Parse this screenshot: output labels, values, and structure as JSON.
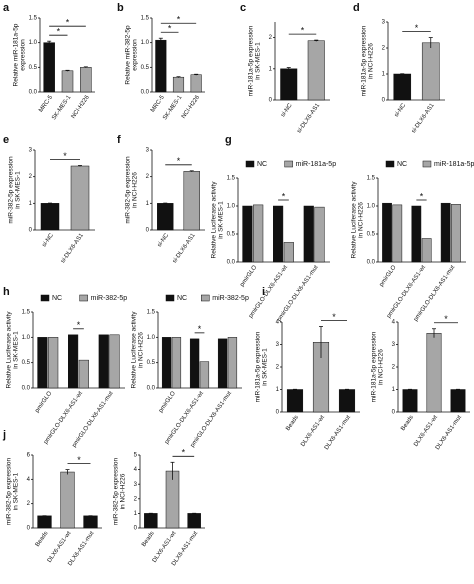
{
  "chart_data": [
    {
      "type": "bar",
      "panel": "a",
      "ylabel": [
        "Relative miR-181a-5p",
        "expression"
      ],
      "categories": [
        "MRC-5",
        "SK-MES-1",
        "NCI-H226"
      ],
      "values": [
        1.0,
        0.43,
        0.5
      ],
      "errors": [
        0.03,
        0.01,
        0.01
      ],
      "colors": [
        "#111111",
        "#a6a6a6",
        "#a6a6a6"
      ],
      "ylim": [
        0,
        1.5
      ],
      "yticks": [
        {
          "value": 0,
          "label": "0.0"
        },
        0.5,
        {
          "value": 1,
          "label": "1.0"
        },
        1.5
      ],
      "significance": [
        {
          "label": "*",
          "between": [
            "MRC-5",
            "SK-MES-1"
          ]
        },
        {
          "label": "*",
          "between": [
            "MRC-5",
            "NCI-H226"
          ]
        }
      ]
    },
    {
      "type": "bar",
      "panel": "b",
      "ylabel": [
        "Relative miR-382-5p",
        "expression"
      ],
      "categories": [
        "MRC-5",
        "SK-MES-1",
        "NCI-H226"
      ],
      "values": [
        1.05,
        0.3,
        0.35
      ],
      "errors": [
        0.04,
        0.01,
        0.01
      ],
      "colors": [
        "#111111",
        "#a6a6a6",
        "#a6a6a6"
      ],
      "ylim": [
        0,
        1.5
      ],
      "yticks": [
        {
          "value": 0,
          "label": "0.0"
        },
        0.5,
        {
          "value": 1,
          "label": "1.0"
        },
        1.5
      ],
      "significance": [
        {
          "label": "*",
          "between": [
            "MRC-5",
            "SK-MES-1"
          ]
        },
        {
          "label": "*",
          "between": [
            "MRC-5",
            "NCI-H226"
          ]
        }
      ]
    },
    {
      "type": "bar",
      "panel": "c",
      "ylabel": [
        "miR-181a-5p expression",
        "in SK-MES-1"
      ],
      "categories": [
        "si-NC",
        "si-DLX6-AS1"
      ],
      "values": [
        1.0,
        1.9
      ],
      "errors": [
        0.04,
        0.02
      ],
      "colors": [
        "#111111",
        "#a6a6a6"
      ],
      "ylim": [
        0,
        2.5
      ],
      "yticks": [
        0,
        1,
        2
      ],
      "significance": [
        {
          "label": "*",
          "between": [
            "si-NC",
            "si-DLX6-AS1"
          ]
        }
      ]
    },
    {
      "type": "bar",
      "panel": "d",
      "ylabel": [
        "miR-181a-5p expression",
        "in NCI-H226"
      ],
      "categories": [
        "si-NC",
        "si-DLX6-AS1"
      ],
      "values": [
        1.0,
        2.2
      ],
      "errors": [
        0.01,
        0.2
      ],
      "colors": [
        "#111111",
        "#a6a6a6"
      ],
      "ylim": [
        0,
        3
      ],
      "yticks": [
        0,
        1,
        2,
        3
      ],
      "significance": [
        {
          "label": "*",
          "between": [
            "si-NC",
            "si-DLX6-AS1"
          ]
        }
      ]
    },
    {
      "type": "bar",
      "panel": "e",
      "ylabel": [
        "miR-382-5p expression",
        "in SK-MES-1"
      ],
      "categories": [
        "si-NC",
        "si-DLX6-AS1"
      ],
      "values": [
        1.0,
        2.4
      ],
      "errors": [
        0.01,
        0.02
      ],
      "colors": [
        "#111111",
        "#a6a6a6"
      ],
      "ylim": [
        0,
        3
      ],
      "yticks": [
        0,
        1,
        2,
        3
      ],
      "significance": [
        {
          "label": "*",
          "between": [
            "si-NC",
            "si-DLX6-AS1"
          ]
        }
      ]
    },
    {
      "type": "bar",
      "panel": "f",
      "ylabel": [
        "miR-382-5p expression",
        "in NCI-H226"
      ],
      "categories": [
        "si-NC",
        "si-DLX6-AS1"
      ],
      "values": [
        1.0,
        2.2
      ],
      "errors": [
        0.01,
        0.02
      ],
      "colors": [
        "#111111",
        "#a6a6a6"
      ],
      "ylim": [
        0,
        3
      ],
      "yticks": [
        0,
        1,
        2,
        3
      ],
      "significance": [
        {
          "label": "*",
          "between": [
            "si-NC",
            "si-DLX6-AS1"
          ]
        }
      ]
    },
    {
      "type": "grouped_bar",
      "panel": "g",
      "ylabel": [
        "Relative Luciferase activity",
        "in SK-MES-1"
      ],
      "categories": [
        "pmirGLO",
        "pmirGLO-DLX6-AS1-wt",
        "pmirGLO-DLX6-AS1-mut"
      ],
      "series": [
        {
          "name": "NC",
          "color": "#111111",
          "values": [
            1.0,
            1.0,
            1.0
          ]
        },
        {
          "name": "miR-181a-5p",
          "color": "#a6a6a6",
          "values": [
            1.02,
            0.35,
            0.98
          ]
        }
      ],
      "ylim": [
        0,
        1.5
      ],
      "yticks": [
        {
          "value": 0,
          "label": "0.0"
        },
        0.5,
        {
          "value": 1,
          "label": "1.0"
        },
        1.5
      ],
      "significance": [
        {
          "label": "*",
          "between": [
            "NC",
            "miR-181a-5p"
          ],
          "at": "pmirGLO-DLX6-AS1-wt"
        }
      ]
    },
    {
      "type": "grouped_bar",
      "ylabel": [
        "Relative Luciferase activity",
        "in NCI-H226"
      ],
      "categories": [
        "pmirGLO",
        "pmirGLO-DLX6-AS1-wt",
        "pmirGLO-DLX6-AS1-mut"
      ],
      "series": [
        {
          "name": "NC",
          "color": "#111111",
          "values": [
            1.05,
            1.0,
            1.05
          ]
        },
        {
          "name": "miR-181a-5p",
          "color": "#a6a6a6",
          "values": [
            1.02,
            0.42,
            1.03
          ]
        }
      ],
      "ylim": [
        0,
        1.5
      ],
      "yticks": [
        {
          "value": 0,
          "label": "0.0"
        },
        0.5,
        {
          "value": 1,
          "label": "1.0"
        },
        1.5
      ],
      "significance": [
        {
          "label": "*",
          "between": [
            "NC",
            "miR-181a-5p"
          ],
          "at": "pmirGLO-DLX6-AS1-wt"
        }
      ]
    },
    {
      "type": "grouped_bar",
      "panel": "h",
      "ylabel": [
        "Relative Luciferase activity",
        "in SK-MES-1"
      ],
      "categories": [
        "pmirGLO",
        "pmirGLO-DLX6-AS1-wt",
        "pmirGLO-DLX6-AS1-mut"
      ],
      "series": [
        {
          "name": "NC",
          "color": "#111111",
          "values": [
            1.0,
            1.05,
            1.05
          ]
        },
        {
          "name": "miR-382-5p",
          "color": "#a6a6a6",
          "values": [
            1.0,
            0.55,
            1.05
          ]
        }
      ],
      "ylim": [
        0,
        1.5
      ],
      "yticks": [
        {
          "value": 0,
          "label": "0.0"
        },
        0.5,
        {
          "value": 1,
          "label": "1.0"
        },
        1.5
      ],
      "significance": [
        {
          "label": "*",
          "between": [
            "NC",
            "miR-382-5p"
          ],
          "at": "pmirGLO-DLX6-AS1-wt"
        }
      ]
    },
    {
      "type": "grouped_bar",
      "ylabel": [
        "Relative Luciferase activity",
        "in NCI-H226"
      ],
      "categories": [
        "pmirGLO",
        "pmirGLO-DLX6-AS1-wt",
        "pmirGLO-DLX6-AS1-mut"
      ],
      "series": [
        {
          "name": "NC",
          "color": "#111111",
          "values": [
            1.0,
            0.97,
            0.97
          ]
        },
        {
          "name": "miR-382-5p",
          "color": "#a6a6a6",
          "values": [
            1.0,
            0.52,
            1.0
          ]
        }
      ],
      "ylim": [
        0,
        1.5
      ],
      "yticks": [
        {
          "value": 0,
          "label": "0.0"
        },
        0.5,
        {
          "value": 1,
          "label": "1.0"
        },
        1.5
      ],
      "significance": [
        {
          "label": "*",
          "between": [
            "NC",
            "miR-382-5p"
          ],
          "at": "pmirGLO-DLX6-AS1-wt"
        }
      ]
    },
    {
      "type": "bar",
      "panel": "i",
      "ylabel": [
        "miR-181a-5p expression",
        "in SK-MES-1"
      ],
      "categories": [
        "Beads",
        "DLX6-AS1-wt",
        "DLX6-AS1-mut"
      ],
      "values": [
        1.0,
        3.1,
        1.0
      ],
      "errors": [
        0.01,
        0.7,
        0.01
      ],
      "colors": [
        "#111111",
        "#a6a6a6",
        "#111111"
      ],
      "ylim": [
        0,
        4
      ],
      "yticks": [
        0,
        1,
        2,
        3,
        4
      ],
      "significance": [
        {
          "label": "*",
          "between": [
            "DLX6-AS1-wt",
            "DLX6-AS1-mut"
          ]
        }
      ]
    },
    {
      "type": "bar",
      "ylabel": [
        "miR-181a-5p expression",
        "in NCI-H226"
      ],
      "categories": [
        "Beads",
        "DLX6-AS1-wt",
        "DLX6-AS1-mut"
      ],
      "values": [
        1.0,
        3.5,
        1.0
      ],
      "errors": [
        0.01,
        0.2,
        0.01
      ],
      "colors": [
        "#111111",
        "#a6a6a6",
        "#111111"
      ],
      "ylim": [
        0,
        4
      ],
      "yticks": [
        0,
        1,
        2,
        3,
        4
      ],
      "significance": [
        {
          "label": "*",
          "between": [
            "DLX6-AS1-wt",
            "DLX6-AS1-mut"
          ]
        }
      ]
    },
    {
      "type": "bar",
      "panel": "j",
      "ylabel": [
        "miR-382-5p expression",
        "in SK-MES-1"
      ],
      "categories": [
        "Beads",
        "DLX6-AS1-wt",
        "DLX6-AS1-mut"
      ],
      "values": [
        1.0,
        4.6,
        1.0
      ],
      "errors": [
        0.01,
        0.2,
        0.01
      ],
      "colors": [
        "#111111",
        "#a6a6a6",
        "#111111"
      ],
      "ylim": [
        0,
        6
      ],
      "yticks": [
        0,
        2,
        4,
        6
      ],
      "significance": [
        {
          "label": "*",
          "between": [
            "DLX6-AS1-wt",
            "DLX6-AS1-mut"
          ]
        }
      ]
    },
    {
      "type": "bar",
      "ylabel": [
        "miR-382-5p expression",
        "in NCI-H226"
      ],
      "categories": [
        "Beads",
        "DLX6-AS1-wt",
        "DLX6-AS1-mut"
      ],
      "values": [
        1.0,
        3.9,
        1.0
      ],
      "errors": [
        0.01,
        0.6,
        0.01
      ],
      "colors": [
        "#111111",
        "#a6a6a6",
        "#111111"
      ],
      "ylim": [
        0,
        5
      ],
      "yticks": [
        0,
        1,
        2,
        3,
        4,
        5
      ],
      "significance": [
        {
          "label": "*",
          "between": [
            "DLX6-AS1-wt",
            "DLX6-AS1-mut"
          ]
        }
      ]
    }
  ]
}
